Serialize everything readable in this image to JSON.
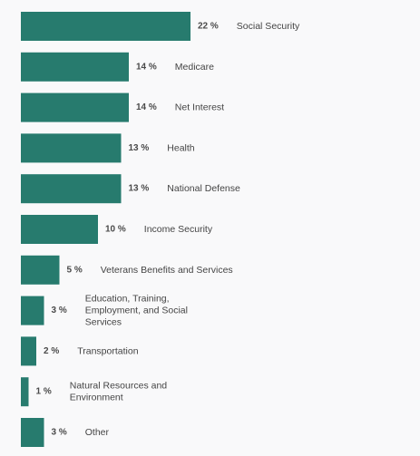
{
  "chart_data": {
    "type": "bar",
    "orientation": "horizontal",
    "value_suffix": " %",
    "bar_color": "#277b6e",
    "xlim": [
      0,
      22
    ],
    "grid": false,
    "legend": "none",
    "categories": [
      "Social Security",
      "Medicare",
      "Net Interest",
      "Health",
      "National Defense",
      "Income Security",
      "Veterans Benefits and Services",
      "Education, Training, Employment, and Social Services",
      "Transportation",
      "Natural Resources and Environment",
      "Other"
    ],
    "values": [
      22,
      14,
      14,
      13,
      13,
      10,
      5,
      3,
      2,
      1,
      3
    ],
    "category_lines": [
      [
        "Social Security"
      ],
      [
        "Medicare"
      ],
      [
        "Net Interest"
      ],
      [
        "Health"
      ],
      [
        "National Defense"
      ],
      [
        "Income Security"
      ],
      [
        "Veterans Benefits and Services"
      ],
      [
        "Education, Training,",
        "Employment, and Social",
        "Services"
      ],
      [
        "Transportation"
      ],
      [
        "Natural Resources and",
        "Environment"
      ],
      [
        "Other"
      ]
    ],
    "colors": {
      "background": "#f9f9fa",
      "bar": "#277b6e",
      "value_text": "#4a4a4a",
      "label_text": "#444444"
    }
  }
}
